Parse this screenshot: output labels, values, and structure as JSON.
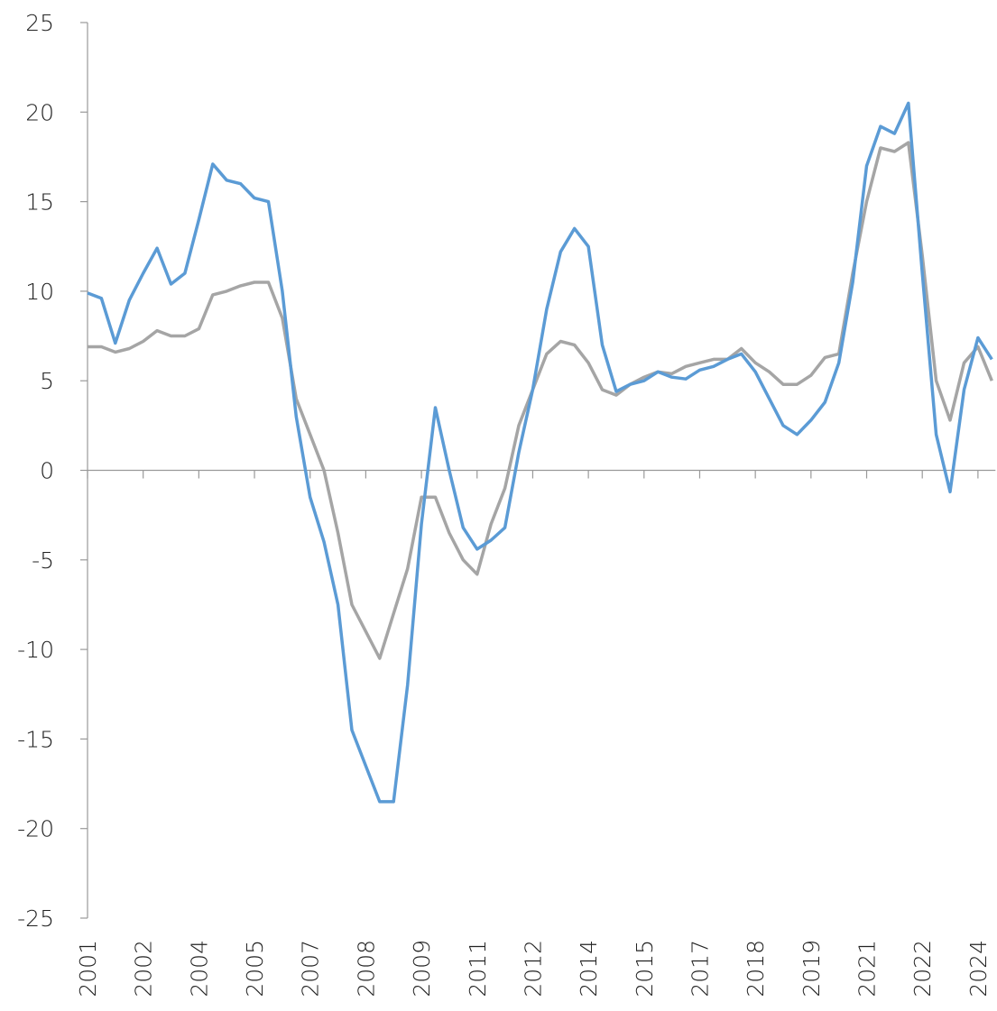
{
  "chart_data": {
    "type": "line",
    "categories": [
      "2001",
      null,
      null,
      null,
      "2002",
      null,
      null,
      null,
      "2004",
      null,
      null,
      null,
      "2005",
      null,
      null,
      null,
      "2007",
      null,
      null,
      null,
      "2008",
      null,
      null,
      null,
      "2009",
      null,
      null,
      null,
      "2011",
      null,
      null,
      null,
      "2012",
      null,
      null,
      null,
      "2014",
      null,
      null,
      null,
      "2015",
      null,
      null,
      null,
      "2017",
      null,
      null,
      null,
      "2018",
      null,
      null,
      null,
      "2019",
      null,
      null,
      null,
      "2021",
      null,
      null,
      null,
      "2022",
      null,
      null,
      null,
      "2024",
      null
    ],
    "series": [
      {
        "color": "#5b9bd5",
        "values": [
          9.9,
          9.6,
          7.1,
          9.5,
          11.0,
          12.4,
          10.4,
          11.0,
          14.0,
          17.1,
          16.2,
          16.0,
          15.2,
          15.0,
          10.0,
          3.0,
          -1.5,
          -4.0,
          -7.5,
          -14.5,
          -16.5,
          -18.5,
          -18.5,
          -12,
          -3,
          3.5,
          0,
          -3.2,
          -4.4,
          -3.9,
          -3.2,
          1.0,
          4.5,
          9.0,
          12.2,
          13.5,
          12.5,
          7.0,
          4.4,
          4.8,
          5.0,
          5.5,
          5.2,
          5.1,
          5.6,
          5.8,
          6.2,
          6.5,
          5.5,
          4.0,
          2.5,
          2.0,
          2.8,
          3.8,
          6.0,
          10.5,
          17.0,
          19.2,
          18.8,
          20.5,
          11,
          2,
          -1.2,
          4.5,
          7.4,
          6.2
        ]
      },
      {
        "color": "#a5a5a5",
        "values": [
          6.9,
          6.9,
          6.6,
          6.8,
          7.2,
          7.8,
          7.5,
          7.5,
          7.9,
          9.8,
          10.0,
          10.3,
          10.5,
          10.5,
          8.5,
          4.0,
          2.0,
          0.0,
          -3.5,
          -7.5,
          -9.0,
          -10.5,
          -8.0,
          -5.5,
          -1.5,
          -1.5,
          -3.5,
          -5.0,
          -5.8,
          -3.0,
          -1.0,
          2.5,
          4.5,
          6.5,
          7.2,
          7.0,
          6.0,
          4.5,
          4.2,
          4.8,
          5.2,
          5.5,
          5.4,
          5.8,
          6.0,
          6.2,
          6.2,
          6.8,
          6.0,
          5.5,
          4.8,
          4.8,
          5.3,
          6.3,
          6.5,
          11.0,
          15.0,
          18.0,
          17.8,
          18.3,
          12.0,
          5.0,
          2.8,
          6.0,
          6.9,
          5.0
        ]
      }
    ],
    "ylim": [
      -25,
      25
    ],
    "yticks": [
      25,
      20,
      15,
      10,
      5,
      0,
      -5,
      -10,
      -15,
      -20,
      -25
    ],
    "grid": false
  }
}
